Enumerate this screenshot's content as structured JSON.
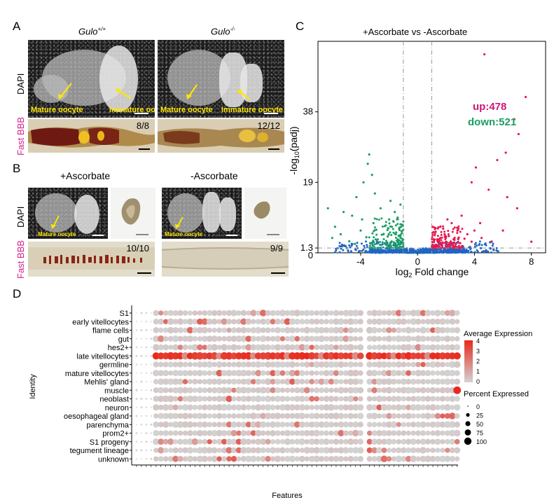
{
  "panels": {
    "A": {
      "letter": "A",
      "genotype_left": "Gulo",
      "genotype_left_sup": "+/+",
      "genotype_right": "Gulo",
      "genotype_right_sup": "-/-",
      "stain_dapi": "DAPI",
      "stain_fastbbb": "Fast BBB",
      "label_mature": "Mature oocyte",
      "label_immature": "Immature oocyte",
      "ratio_left": "8/8",
      "ratio_right": "12/12"
    },
    "B": {
      "letter": "B",
      "cond_left": "+Ascorbate",
      "cond_right": "-Ascorbate",
      "stain_dapi": "DAPI",
      "stain_fastbbb": "Fast BBB",
      "label_mature": "Mature oocyte",
      "ratio_left": "10/10",
      "ratio_right": "9/9"
    },
    "C": {
      "letter": "C",
      "title": "+Ascorbate vs -Ascorbate",
      "up_label": "up:478",
      "down_label": "down:521",
      "ylabel": "-log10(padj)",
      "xlabel": "log2 Fold change"
    },
    "D": {
      "letter": "D"
    }
  },
  "chart_data": [
    {
      "type": "scatter",
      "title": "+Ascorbate vs -Ascorbate",
      "xlabel": "log2 Fold change",
      "ylabel": "-log10(padj)",
      "xlim": [
        -7,
        9
      ],
      "ylim": [
        0,
        57
      ],
      "x_ticks": [
        -4,
        0,
        4,
        8
      ],
      "y_ticks": [
        0,
        1.3,
        19,
        38
      ],
      "y_tick_labels": [
        "0",
        "1.3",
        "19",
        "38"
      ],
      "thresholds": {
        "x": [
          -1,
          1
        ],
        "y": 1.3
      },
      "grid": false,
      "counts": {
        "up": 478,
        "down": 521
      },
      "colors": {
        "up": "#e8174d",
        "down": "#1a9e62",
        "ns": "#1f66c4"
      },
      "series": [
        {
          "name": "up",
          "points": [
            [
              4.7,
              53.5
            ],
            [
              7.6,
              42
            ],
            [
              6.8,
              36
            ],
            [
              7.1,
              32
            ],
            [
              6.2,
              27
            ],
            [
              5.6,
              25
            ],
            [
              4.1,
              23
            ],
            [
              3.8,
              19
            ],
            [
              5.0,
              17
            ],
            [
              6.3,
              15
            ],
            [
              7.0,
              12
            ],
            [
              3.1,
              10
            ],
            [
              2.4,
              8
            ],
            [
              4.4,
              8
            ],
            [
              6.0,
              6
            ],
            [
              8.0,
              3
            ],
            [
              3.5,
              5
            ],
            [
              2.8,
              6
            ],
            [
              2.2,
              4.5
            ],
            [
              1.9,
              5
            ],
            [
              1.6,
              4
            ],
            [
              1.4,
              3.2
            ],
            [
              2.0,
              3
            ],
            [
              2.6,
              3.5
            ],
            [
              3.0,
              2.6
            ],
            [
              1.3,
              2.2
            ],
            [
              1.7,
              2
            ],
            [
              4.5,
              4
            ],
            [
              5.2,
              3
            ],
            [
              3.8,
              3
            ],
            [
              2.3,
              2.4
            ],
            [
              1.5,
              2.8
            ],
            [
              1.8,
              6.5
            ],
            [
              2.9,
              4.1
            ],
            [
              4.0,
              6
            ],
            [
              1.2,
              3.6
            ],
            [
              2.5,
              2.1
            ],
            [
              3.3,
              3.8
            ],
            [
              1.6,
              7
            ],
            [
              2.1,
              9
            ]
          ]
        },
        {
          "name": "down",
          "points": [
            [
              -3.4,
              26.5
            ],
            [
              -3.5,
              24
            ],
            [
              -3.2,
              21
            ],
            [
              -3.8,
              19
            ],
            [
              -3.0,
              16
            ],
            [
              -4.3,
              15
            ],
            [
              -6.3,
              12
            ],
            [
              -5.2,
              11
            ],
            [
              -4.6,
              10
            ],
            [
              -2.6,
              12
            ],
            [
              -2.0,
              9
            ],
            [
              -3.1,
              8
            ],
            [
              -1.8,
              7
            ],
            [
              -5.8,
              7
            ],
            [
              -4.0,
              6
            ],
            [
              -2.4,
              5
            ],
            [
              -1.5,
              5.5
            ],
            [
              -1.2,
              4
            ],
            [
              -2.8,
              3.6
            ],
            [
              -3.6,
              4.2
            ],
            [
              -4.8,
              3.1
            ],
            [
              -1.4,
              2.2
            ],
            [
              -1.9,
              2.8
            ],
            [
              -2.2,
              3.2
            ],
            [
              -1.1,
              3
            ],
            [
              -1.3,
              6.5
            ],
            [
              -1.7,
              8.5
            ],
            [
              -2.9,
              6.2
            ],
            [
              -3.9,
              9
            ],
            [
              -1.6,
              11
            ],
            [
              -1.2,
              13
            ],
            [
              -2.3,
              7.2
            ],
            [
              -5.4,
              5
            ],
            [
              -6.0,
              4
            ],
            [
              -1.4,
              9.5
            ],
            [
              -1.05,
              7.5
            ],
            [
              -2.1,
              4.4
            ],
            [
              -3.3,
              2.5
            ],
            [
              -4.4,
              2.4
            ],
            [
              -1.9,
              14
            ]
          ]
        }
      ]
    },
    {
      "type": "scatter",
      "subtype": "dotplot",
      "xlabel": "Features",
      "ylabel": "Identity",
      "categories_y": [
        "S1",
        "early vitellocytes",
        "flame cells",
        "gut",
        "hes2+",
        "late vitellocytes",
        "germline",
        "mature vitellocytes",
        "Mehlis' gland",
        "muscle",
        "neoblast",
        "neuron",
        "oesophageal gland",
        "parenchyma",
        "prom2+",
        "S1 progeny",
        "tegument lineage",
        "unknown"
      ],
      "n_features": 66,
      "gap_after_feature": 46,
      "legend": {
        "color_title": "Average Expression",
        "color_ticks": [
          "4",
          "3",
          "2",
          "1",
          "0"
        ],
        "size_title": "Percent Expressed",
        "size_ticks": [
          "0",
          "25",
          "50",
          "75",
          "100"
        ]
      },
      "note": "late vitellocytes row shows high expression across most features"
    }
  ]
}
